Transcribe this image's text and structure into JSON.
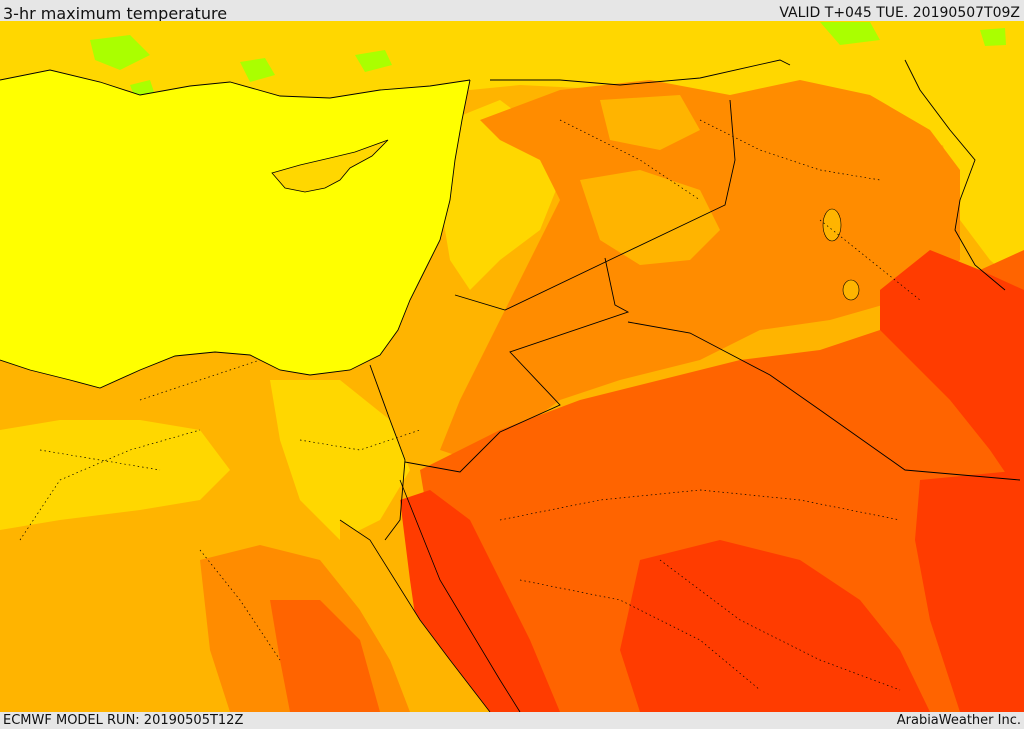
{
  "header": {
    "title": "3-hr maximum temperature",
    "valid": "VALID T+045 TUE. 20190507T09Z"
  },
  "footer": {
    "model_run": "ECMWF MODEL RUN: 20190505T12Z",
    "credit": "ArabiaWeather Inc."
  },
  "palette": {
    "sea_yellow": "#ffff00",
    "green": "#aaff00",
    "light_gold": "#ffd700",
    "amber": "#ffb400",
    "orange": "#ff8c00",
    "dark_orange": "#ff6400",
    "red": "#ff3c00",
    "border": "#000000"
  }
}
